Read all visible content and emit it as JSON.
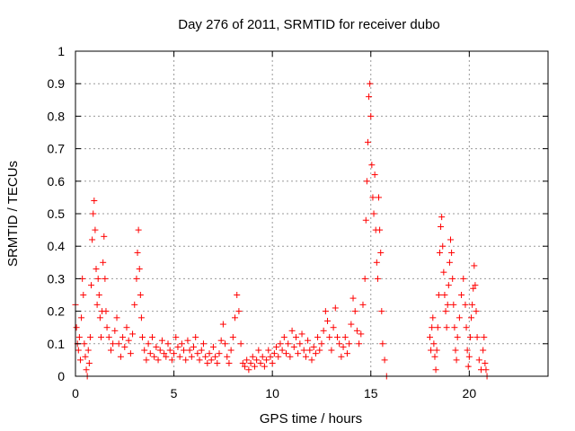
{
  "chart_data": {
    "type": "scatter",
    "title": "Day 276 of 2011, SRMTID for receiver dubo",
    "xlabel": "GPS time / hours",
    "ylabel": "SRMTID / TECUs",
    "xlim": [
      0,
      24
    ],
    "ylim": [
      0,
      1
    ],
    "xticks": [
      0,
      5,
      10,
      15,
      20
    ],
    "xtick_labels": [
      "0",
      "5",
      "10",
      "15",
      "20"
    ],
    "yticks": [
      0,
      0.1,
      0.2,
      0.3,
      0.4,
      0.5,
      0.6,
      0.7,
      0.8,
      0.9,
      1
    ],
    "ytick_labels": [
      "0",
      "0.1",
      "0.2",
      "0.3",
      "0.4",
      "0.5",
      "0.6",
      "0.7",
      "0.8",
      "0.9",
      "1"
    ],
    "grid": true,
    "marker": "+",
    "color": "#ff0000",
    "series": [
      {
        "name": "SRMTID",
        "points": [
          [
            0.0,
            0.22
          ],
          [
            0.05,
            0.15
          ],
          [
            0.1,
            0.1
          ],
          [
            0.15,
            0.08
          ],
          [
            0.2,
            0.12
          ],
          [
            0.25,
            0.05
          ],
          [
            0.3,
            0.18
          ],
          [
            0.35,
            0.3
          ],
          [
            0.4,
            0.25
          ],
          [
            0.45,
            0.1
          ],
          [
            0.5,
            0.06
          ],
          [
            0.55,
            0.02
          ],
          [
            0.6,
            0.0
          ],
          [
            0.65,
            0.08
          ],
          [
            0.7,
            0.04
          ],
          [
            0.75,
            0.12
          ],
          [
            0.8,
            0.28
          ],
          [
            0.85,
            0.42
          ],
          [
            0.9,
            0.5
          ],
          [
            0.95,
            0.54
          ],
          [
            1.0,
            0.45
          ],
          [
            1.05,
            0.33
          ],
          [
            1.1,
            0.22
          ],
          [
            1.15,
            0.3
          ],
          [
            1.2,
            0.25
          ],
          [
            1.25,
            0.18
          ],
          [
            1.3,
            0.12
          ],
          [
            1.35,
            0.2
          ],
          [
            1.4,
            0.35
          ],
          [
            1.45,
            0.43
          ],
          [
            1.5,
            0.3
          ],
          [
            1.55,
            0.2
          ],
          [
            1.6,
            0.15
          ],
          [
            1.7,
            0.12
          ],
          [
            1.8,
            0.08
          ],
          [
            1.9,
            0.1
          ],
          [
            2.0,
            0.14
          ],
          [
            2.1,
            0.18
          ],
          [
            2.2,
            0.1
          ],
          [
            2.3,
            0.06
          ],
          [
            2.4,
            0.12
          ],
          [
            2.5,
            0.09
          ],
          [
            2.6,
            0.15
          ],
          [
            2.7,
            0.11
          ],
          [
            2.8,
            0.07
          ],
          [
            2.9,
            0.13
          ],
          [
            3.0,
            0.22
          ],
          [
            3.1,
            0.3
          ],
          [
            3.15,
            0.38
          ],
          [
            3.2,
            0.45
          ],
          [
            3.25,
            0.33
          ],
          [
            3.3,
            0.25
          ],
          [
            3.35,
            0.18
          ],
          [
            3.4,
            0.12
          ],
          [
            3.5,
            0.08
          ],
          [
            3.6,
            0.05
          ],
          [
            3.7,
            0.1
          ],
          [
            3.8,
            0.07
          ],
          [
            3.9,
            0.12
          ],
          [
            4.0,
            0.06
          ],
          [
            4.1,
            0.09
          ],
          [
            4.2,
            0.05
          ],
          [
            4.3,
            0.08
          ],
          [
            4.4,
            0.11
          ],
          [
            4.5,
            0.07
          ],
          [
            4.6,
            0.06
          ],
          [
            4.7,
            0.1
          ],
          [
            4.8,
            0.08
          ],
          [
            4.9,
            0.05
          ],
          [
            5.0,
            0.07
          ],
          [
            5.1,
            0.12
          ],
          [
            5.2,
            0.09
          ],
          [
            5.3,
            0.06
          ],
          [
            5.4,
            0.1
          ],
          [
            5.5,
            0.08
          ],
          [
            5.6,
            0.05
          ],
          [
            5.7,
            0.11
          ],
          [
            5.8,
            0.08
          ],
          [
            5.9,
            0.06
          ],
          [
            6.0,
            0.09
          ],
          [
            6.1,
            0.12
          ],
          [
            6.2,
            0.07
          ],
          [
            6.3,
            0.05
          ],
          [
            6.4,
            0.08
          ],
          [
            6.5,
            0.1
          ],
          [
            6.6,
            0.06
          ],
          [
            6.7,
            0.04
          ],
          [
            6.8,
            0.07
          ],
          [
            6.9,
            0.05
          ],
          [
            7.0,
            0.09
          ],
          [
            7.1,
            0.06
          ],
          [
            7.2,
            0.04
          ],
          [
            7.3,
            0.07
          ],
          [
            7.4,
            0.11
          ],
          [
            7.5,
            0.16
          ],
          [
            7.6,
            0.1
          ],
          [
            7.7,
            0.06
          ],
          [
            7.8,
            0.04
          ],
          [
            7.9,
            0.08
          ],
          [
            8.0,
            0.12
          ],
          [
            8.1,
            0.18
          ],
          [
            8.2,
            0.25
          ],
          [
            8.3,
            0.2
          ],
          [
            8.4,
            0.1
          ],
          [
            8.5,
            0.04
          ],
          [
            8.6,
            0.03
          ],
          [
            8.7,
            0.05
          ],
          [
            8.8,
            0.02
          ],
          [
            8.9,
            0.04
          ],
          [
            9.0,
            0.06
          ],
          [
            9.1,
            0.03
          ],
          [
            9.2,
            0.05
          ],
          [
            9.3,
            0.08
          ],
          [
            9.4,
            0.04
          ],
          [
            9.5,
            0.06
          ],
          [
            9.6,
            0.03
          ],
          [
            9.7,
            0.05
          ],
          [
            9.8,
            0.08
          ],
          [
            9.9,
            0.06
          ],
          [
            10.0,
            0.04
          ],
          [
            10.1,
            0.07
          ],
          [
            10.2,
            0.09
          ],
          [
            10.3,
            0.06
          ],
          [
            10.4,
            0.1
          ],
          [
            10.5,
            0.08
          ],
          [
            10.6,
            0.12
          ],
          [
            10.7,
            0.07
          ],
          [
            10.8,
            0.1
          ],
          [
            10.9,
            0.06
          ],
          [
            11.0,
            0.14
          ],
          [
            11.1,
            0.09
          ],
          [
            11.2,
            0.12
          ],
          [
            11.3,
            0.07
          ],
          [
            11.4,
            0.1
          ],
          [
            11.5,
            0.13
          ],
          [
            11.6,
            0.08
          ],
          [
            11.7,
            0.06
          ],
          [
            11.8,
            0.11
          ],
          [
            11.9,
            0.08
          ],
          [
            12.0,
            0.05
          ],
          [
            12.1,
            0.09
          ],
          [
            12.2,
            0.07
          ],
          [
            12.3,
            0.12
          ],
          [
            12.4,
            0.08
          ],
          [
            12.5,
            0.1
          ],
          [
            12.6,
            0.14
          ],
          [
            12.7,
            0.2
          ],
          [
            12.8,
            0.17
          ],
          [
            12.9,
            0.12
          ],
          [
            13.0,
            0.08
          ],
          [
            13.1,
            0.15
          ],
          [
            13.2,
            0.21
          ],
          [
            13.3,
            0.12
          ],
          [
            13.4,
            0.1
          ],
          [
            13.5,
            0.06
          ],
          [
            13.6,
            0.09
          ],
          [
            13.7,
            0.12
          ],
          [
            13.8,
            0.07
          ],
          [
            13.9,
            0.1
          ],
          [
            14.0,
            0.16
          ],
          [
            14.1,
            0.24
          ],
          [
            14.2,
            0.2
          ],
          [
            14.3,
            0.14
          ],
          [
            14.4,
            0.1
          ],
          [
            14.5,
            0.13
          ],
          [
            14.6,
            0.22
          ],
          [
            14.7,
            0.3
          ],
          [
            14.75,
            0.48
          ],
          [
            14.8,
            0.6
          ],
          [
            14.85,
            0.72
          ],
          [
            14.9,
            0.86
          ],
          [
            14.95,
            0.9
          ],
          [
            15.0,
            0.8
          ],
          [
            15.05,
            0.65
          ],
          [
            15.1,
            0.55
          ],
          [
            15.15,
            0.5
          ],
          [
            15.2,
            0.62
          ],
          [
            15.25,
            0.45
          ],
          [
            15.3,
            0.35
          ],
          [
            15.35,
            0.3
          ],
          [
            15.4,
            0.55
          ],
          [
            15.45,
            0.45
          ],
          [
            15.5,
            0.38
          ],
          [
            15.55,
            0.2
          ],
          [
            15.6,
            0.1
          ],
          [
            15.7,
            0.05
          ],
          [
            15.8,
            0.0
          ],
          [
            18.0,
            0.12
          ],
          [
            18.05,
            0.08
          ],
          [
            18.1,
            0.15
          ],
          [
            18.15,
            0.18
          ],
          [
            18.2,
            0.1
          ],
          [
            18.25,
            0.06
          ],
          [
            18.3,
            0.02
          ],
          [
            18.35,
            0.08
          ],
          [
            18.4,
            0.15
          ],
          [
            18.45,
            0.25
          ],
          [
            18.5,
            0.38
          ],
          [
            18.55,
            0.46
          ],
          [
            18.6,
            0.49
          ],
          [
            18.65,
            0.4
          ],
          [
            18.7,
            0.32
          ],
          [
            18.75,
            0.25
          ],
          [
            18.8,
            0.2
          ],
          [
            18.85,
            0.15
          ],
          [
            18.9,
            0.22
          ],
          [
            18.95,
            0.28
          ],
          [
            19.0,
            0.35
          ],
          [
            19.05,
            0.42
          ],
          [
            19.1,
            0.38
          ],
          [
            19.15,
            0.3
          ],
          [
            19.2,
            0.22
          ],
          [
            19.25,
            0.15
          ],
          [
            19.3,
            0.08
          ],
          [
            19.35,
            0.05
          ],
          [
            19.4,
            0.12
          ],
          [
            19.5,
            0.18
          ],
          [
            19.6,
            0.25
          ],
          [
            19.7,
            0.3
          ],
          [
            19.8,
            0.22
          ],
          [
            19.85,
            0.15
          ],
          [
            19.9,
            0.08
          ],
          [
            19.95,
            0.03
          ],
          [
            20.0,
            0.06
          ],
          [
            20.05,
            0.12
          ],
          [
            20.1,
            0.18
          ],
          [
            20.15,
            0.22
          ],
          [
            20.2,
            0.27
          ],
          [
            20.25,
            0.34
          ],
          [
            20.3,
            0.28
          ],
          [
            20.35,
            0.2
          ],
          [
            20.4,
            0.12
          ],
          [
            20.5,
            0.05
          ],
          [
            20.6,
            0.02
          ],
          [
            20.7,
            0.08
          ],
          [
            20.75,
            0.12
          ],
          [
            20.8,
            0.04
          ],
          [
            20.85,
            0.02
          ],
          [
            20.9,
            0.0
          ]
        ]
      }
    ]
  }
}
